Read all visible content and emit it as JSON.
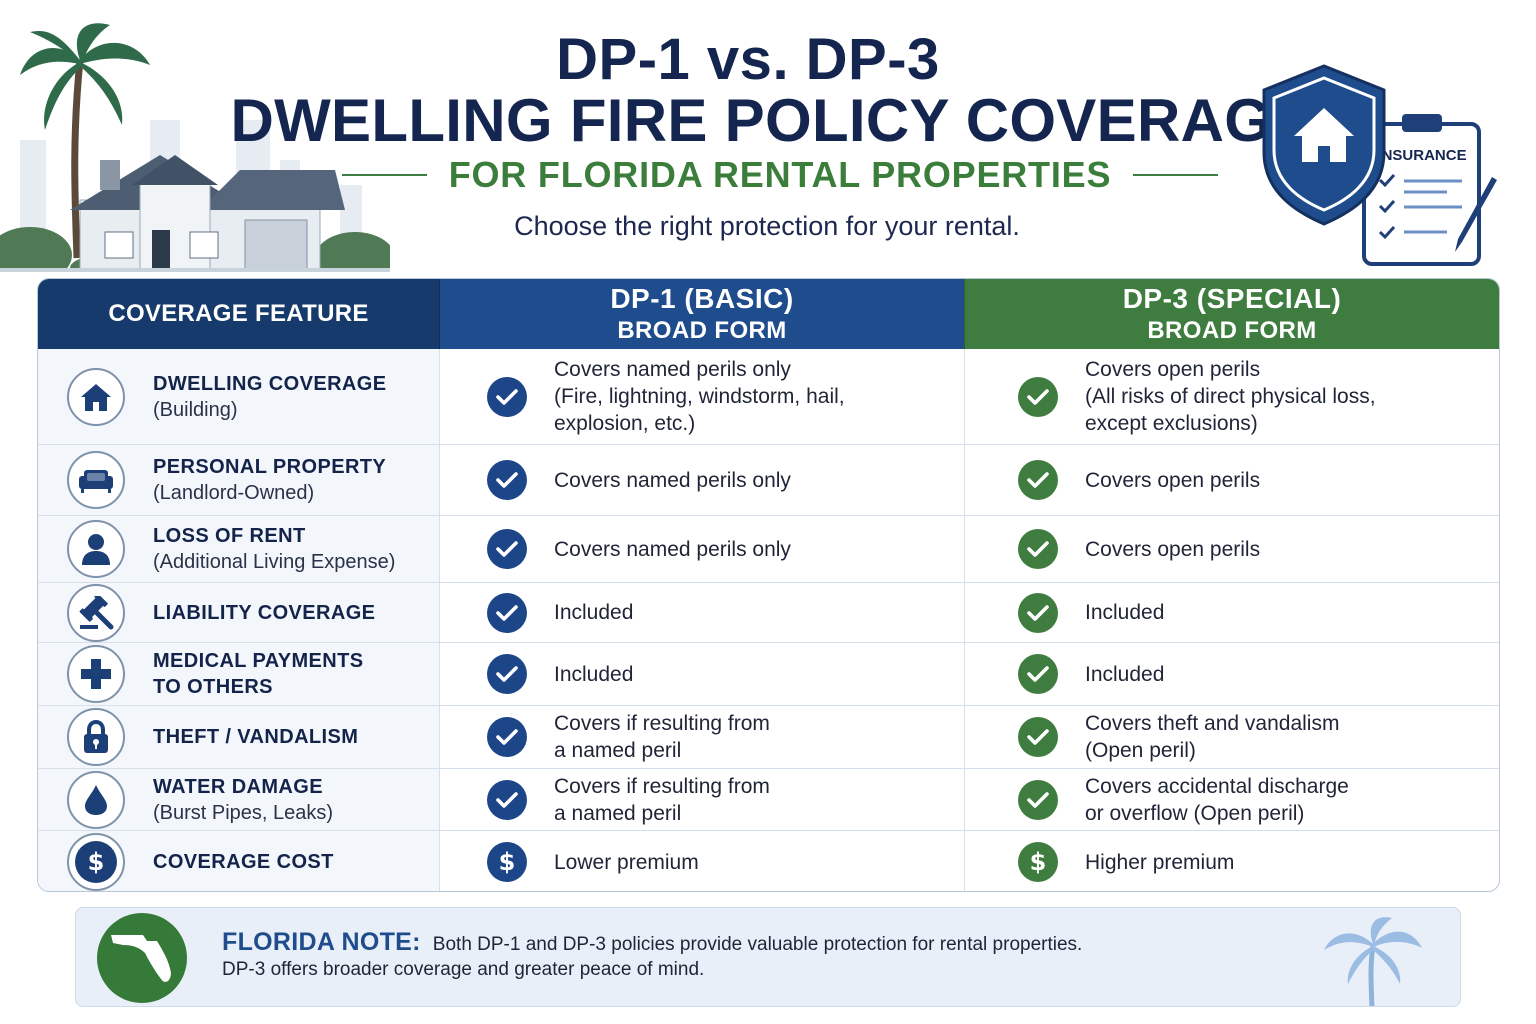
{
  "header": {
    "title_line1": "DP-1 vs. DP-3",
    "title_line2": "DWELLING FIRE POLICY COVERAGE",
    "subtitle": "FOR FLORIDA RENTAL PROPERTIES",
    "tagline": "Choose the right protection for your rental.",
    "clipboard_label": "INSURANCE"
  },
  "table": {
    "columns": {
      "feature": "COVERAGE FEATURE",
      "dp1_title": "DP-1 (BASIC)",
      "dp1_sub": "BROAD FORM",
      "dp3_title": "DP-3 (SPECIAL)",
      "dp3_sub": "BROAD FORM"
    },
    "rows": [
      {
        "icon": "house-icon",
        "name": "DWELLING COVERAGE",
        "name_line2": "",
        "sub": "(Building)",
        "dp1_badge": "check",
        "dp1_line1": "Covers named perils only",
        "dp1_line2": "(Fire, lightning, windstorm, hail,",
        "dp1_line3": "explosion, etc.)",
        "dp3_badge": "check",
        "dp3_line1": "Covers open perils",
        "dp3_line2": "(All risks of direct physical loss,",
        "dp3_line3": "except exclusions)"
      },
      {
        "icon": "sofa-icon",
        "name": "PERSONAL PROPERTY",
        "name_line2": "",
        "sub": "(Landlord-Owned)",
        "dp1_badge": "check",
        "dp1_line1": "Covers named perils only",
        "dp1_line2": "",
        "dp1_line3": "",
        "dp3_badge": "check",
        "dp3_line1": "Covers open perils",
        "dp3_line2": "",
        "dp3_line3": ""
      },
      {
        "icon": "person-icon",
        "name": "LOSS OF RENT",
        "name_line2": "",
        "sub": "(Additional Living Expense)",
        "dp1_badge": "check",
        "dp1_line1": "Covers named perils only",
        "dp1_line2": "",
        "dp1_line3": "",
        "dp3_badge": "check",
        "dp3_line1": "Covers open perils",
        "dp3_line2": "",
        "dp3_line3": ""
      },
      {
        "icon": "gavel-icon",
        "name": "LIABILITY COVERAGE",
        "name_line2": "",
        "sub": "",
        "dp1_badge": "check",
        "dp1_line1": "Included",
        "dp1_line2": "",
        "dp1_line3": "",
        "dp3_badge": "check",
        "dp3_line1": "Included",
        "dp3_line2": "",
        "dp3_line3": ""
      },
      {
        "icon": "medical-cross-icon",
        "name": "MEDICAL PAYMENTS",
        "name_line2": "TO OTHERS",
        "sub": "",
        "dp1_badge": "check",
        "dp1_line1": "Included",
        "dp1_line2": "",
        "dp1_line3": "",
        "dp3_badge": "check",
        "dp3_line1": "Included",
        "dp3_line2": "",
        "dp3_line3": ""
      },
      {
        "icon": "padlock-icon",
        "name": "THEFT / VANDALISM",
        "name_line2": "",
        "sub": "",
        "dp1_badge": "check",
        "dp1_line1": "Covers if resulting from",
        "dp1_line2": "a named peril",
        "dp1_line3": "",
        "dp3_badge": "check",
        "dp3_line1": "Covers theft and vandalism",
        "dp3_line2": "(Open peril)",
        "dp3_line3": ""
      },
      {
        "icon": "water-drop-icon",
        "name": "WATER DAMAGE",
        "name_line2": "",
        "sub": "(Burst Pipes, Leaks)",
        "dp1_badge": "check",
        "dp1_line1": "Covers if resulting from",
        "dp1_line2": "a named peril",
        "dp1_line3": "",
        "dp3_badge": "check",
        "dp3_line1": "Covers accidental discharge",
        "dp3_line2": "or overflow (Open peril)",
        "dp3_line3": ""
      },
      {
        "icon": "dollar-coin-icon",
        "name": "COVERAGE COST",
        "name_line2": "",
        "sub": "",
        "dp1_badge": "dollar",
        "dp1_line1": "Lower premium",
        "dp1_line2": "",
        "dp1_line3": "",
        "dp3_badge": "dollar",
        "dp3_line1": "Higher premium",
        "dp3_line2": "",
        "dp3_line3": ""
      }
    ]
  },
  "note": {
    "label": "FLORIDA NOTE:",
    "line1": "Both DP-1 and DP-3 policies provide valuable protection for rental properties.",
    "line2": "DP-3 offers broader coverage and greater peace of mind."
  },
  "colors": {
    "navy": "#14264f",
    "dp1_blue": "#1e4c8c",
    "dp3_green": "#3e7d3f",
    "feature_bg": "#f3f7fc"
  }
}
